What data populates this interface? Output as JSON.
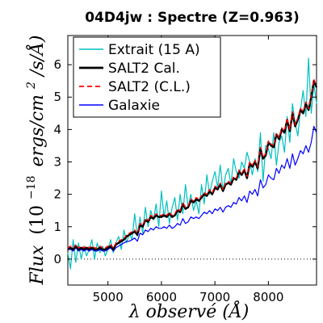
{
  "chart_data": {
    "type": "line",
    "title": "04D4jw : Spectre (Z=0.963)",
    "xlabel": "λ observé (Å)",
    "ylabel_parts": {
      "main": "Flux",
      "paren_open": "(10",
      "exponent": "−18",
      "units": "ergs/cm",
      "units_exp": "2",
      "units_tail": "/s/Å)"
    },
    "xlim": [
      4250,
      8900
    ],
    "ylim": [
      -0.8,
      6.9
    ],
    "xticks": [
      5000,
      6000,
      7000,
      8000
    ],
    "xtick_labels": [
      "5000",
      "6000",
      "7000",
      "8000"
    ],
    "yticks": [
      0,
      1,
      2,
      3,
      4,
      5,
      6
    ],
    "ytick_labels": [
      "0",
      "1",
      "2",
      "3",
      "4",
      "5",
      "6"
    ],
    "legend_position": "top-left",
    "zero_line": true,
    "series": [
      {
        "name": "Extrait (15 A)",
        "color": "#00bfbf",
        "x": [
          4250,
          4300,
          4350,
          4400,
          4450,
          4500,
          4550,
          4600,
          4650,
          4700,
          4750,
          4800,
          4850,
          4900,
          4950,
          5000,
          5050,
          5100,
          5150,
          5200,
          5250,
          5300,
          5350,
          5400,
          5450,
          5500,
          5550,
          5600,
          5650,
          5700,
          5750,
          5800,
          5850,
          5900,
          5950,
          6000,
          6050,
          6100,
          6150,
          6200,
          6250,
          6300,
          6350,
          6400,
          6450,
          6500,
          6550,
          6600,
          6650,
          6700,
          6750,
          6800,
          6850,
          6900,
          6950,
          7000,
          7050,
          7100,
          7150,
          7200,
          7250,
          7300,
          7350,
          7400,
          7450,
          7500,
          7550,
          7600,
          7650,
          7700,
          7750,
          7800,
          7850,
          7900,
          7950,
          8000,
          8050,
          8100,
          8150,
          8200,
          8250,
          8300,
          8350,
          8400,
          8450,
          8500,
          8550,
          8600,
          8650,
          8700,
          8750,
          8800,
          8850,
          8900
        ],
        "values": [
          0.2,
          -0.3,
          0.6,
          -0.1,
          0.5,
          0.0,
          0.4,
          0.1,
          0.3,
          0.6,
          0.0,
          0.5,
          0.2,
          0.4,
          0.1,
          0.3,
          0.6,
          0.2,
          0.5,
          0.7,
          0.3,
          0.9,
          0.5,
          0.8,
          0.6,
          1.4,
          0.7,
          1.3,
          0.8,
          1.6,
          1.0,
          1.5,
          1.2,
          1.7,
          1.0,
          2.1,
          1.3,
          1.8,
          1.1,
          1.6,
          1.9,
          1.2,
          2.0,
          1.4,
          2.3,
          1.6,
          2.0,
          1.5,
          1.8,
          1.4,
          2.3,
          1.7,
          2.6,
          2.0,
          2.4,
          2.7,
          2.2,
          2.9,
          2.1,
          2.6,
          2.8,
          2.3,
          3.1,
          2.7,
          2.5,
          3.0,
          2.8,
          3.3,
          3.0,
          2.6,
          3.1,
          2.7,
          3.9,
          2.4,
          3.5,
          3.4,
          3.1,
          3.9,
          2.9,
          3.6,
          3.8,
          3.3,
          4.4,
          3.6,
          4.8,
          4.2,
          3.8,
          4.6,
          5.2,
          4.4,
          6.2,
          4.5,
          5.4,
          4.8
        ]
      },
      {
        "name": "SALT2 Cal.",
        "color": "#000000",
        "x": [
          4250,
          4300,
          4350,
          4400,
          4450,
          4500,
          4550,
          4600,
          4650,
          4700,
          4750,
          4800,
          4850,
          4900,
          4950,
          5000,
          5050,
          5100,
          5150,
          5200,
          5250,
          5300,
          5350,
          5400,
          5450,
          5500,
          5550,
          5600,
          5650,
          5700,
          5750,
          5800,
          5850,
          5900,
          5950,
          6000,
          6050,
          6100,
          6150,
          6200,
          6250,
          6300,
          6350,
          6400,
          6450,
          6500,
          6550,
          6600,
          6650,
          6700,
          6750,
          6800,
          6850,
          6900,
          6950,
          7000,
          7050,
          7100,
          7150,
          7200,
          7250,
          7300,
          7350,
          7400,
          7450,
          7500,
          7550,
          7600,
          7650,
          7700,
          7750,
          7800,
          7850,
          7900,
          7950,
          8000,
          8050,
          8100,
          8150,
          8200,
          8250,
          8300,
          8350,
          8400,
          8450,
          8500,
          8550,
          8600,
          8650,
          8700,
          8750,
          8800,
          8850,
          8900
        ],
        "values": [
          0.3,
          0.35,
          0.3,
          0.4,
          0.3,
          0.35,
          0.3,
          0.35,
          0.3,
          0.35,
          0.3,
          0.3,
          0.35,
          0.3,
          0.3,
          0.35,
          0.4,
          0.3,
          0.45,
          0.5,
          0.55,
          0.6,
          0.7,
          0.75,
          0.8,
          0.85,
          0.75,
          1.05,
          1.0,
          1.2,
          1.15,
          1.3,
          1.25,
          1.35,
          1.3,
          1.3,
          1.35,
          1.3,
          1.4,
          1.3,
          1.35,
          1.5,
          1.45,
          1.7,
          1.55,
          1.6,
          1.8,
          1.75,
          1.85,
          1.8,
          1.9,
          2.0,
          1.95,
          2.1,
          2.0,
          2.2,
          2.15,
          2.3,
          2.1,
          2.3,
          2.35,
          2.3,
          2.5,
          2.45,
          2.7,
          2.6,
          2.75,
          2.5,
          2.95,
          2.85,
          3.0,
          2.8,
          3.4,
          3.1,
          3.2,
          3.6,
          3.5,
          3.45,
          3.85,
          3.7,
          4.0,
          3.9,
          4.3,
          3.95,
          4.5,
          4.1,
          4.3,
          4.6,
          4.5,
          4.8,
          4.6,
          5.0,
          5.5,
          5.3
        ]
      },
      {
        "name": "SALT2 (C.L.)",
        "color": "#ff0000",
        "x": [
          4250,
          4300,
          4350,
          4400,
          4450,
          4500,
          4550,
          4600,
          4650,
          4700,
          4750,
          4800,
          4850,
          4900,
          4950,
          5000,
          5050,
          5100,
          5150,
          5200,
          5250,
          5300,
          5350,
          5400,
          5450,
          5500,
          5550,
          5600,
          5650,
          5700,
          5750,
          5800,
          5850,
          5900,
          5950,
          6000,
          6050,
          6100,
          6150,
          6200,
          6250,
          6300,
          6350,
          6400,
          6450,
          6500,
          6550,
          6600,
          6650,
          6700,
          6750,
          6800,
          6850,
          6900,
          6950,
          7000,
          7050,
          7100,
          7150,
          7200,
          7250,
          7300,
          7350,
          7400,
          7450,
          7500,
          7550,
          7600,
          7650,
          7700,
          7750,
          7800,
          7850,
          7900,
          7950,
          8000,
          8050,
          8100,
          8150,
          8200,
          8250,
          8300,
          8350,
          8400,
          8450,
          8500,
          8550,
          8600,
          8650,
          8700,
          8750,
          8800,
          8850,
          8900
        ],
        "values": [
          0.35,
          0.4,
          0.35,
          0.45,
          0.35,
          0.4,
          0.35,
          0.4,
          0.35,
          0.4,
          0.35,
          0.35,
          0.4,
          0.35,
          0.35,
          0.4,
          0.45,
          0.35,
          0.5,
          0.55,
          0.6,
          0.65,
          0.75,
          0.8,
          0.85,
          0.9,
          0.8,
          1.1,
          1.05,
          1.25,
          1.2,
          1.35,
          1.3,
          1.4,
          1.35,
          1.35,
          1.4,
          1.35,
          1.45,
          1.35,
          1.4,
          1.55,
          1.5,
          1.75,
          1.6,
          1.65,
          1.85,
          1.8,
          1.9,
          1.85,
          1.95,
          2.05,
          2.0,
          2.15,
          2.05,
          2.25,
          2.2,
          2.35,
          2.15,
          2.35,
          2.4,
          2.35,
          2.55,
          2.5,
          2.75,
          2.65,
          2.8,
          2.55,
          3.0,
          2.9,
          3.05,
          2.85,
          3.45,
          3.15,
          3.25,
          3.65,
          3.55,
          3.5,
          3.9,
          3.75,
          4.05,
          3.95,
          4.35,
          4.0,
          4.55,
          4.15,
          4.35,
          4.65,
          4.55,
          4.85,
          4.65,
          5.05,
          5.55,
          5.35
        ]
      },
      {
        "name": "Galaxie",
        "color": "#0000ff",
        "x": [
          4250,
          4300,
          4350,
          4400,
          4450,
          4500,
          4550,
          4600,
          4650,
          4700,
          4750,
          4800,
          4850,
          4900,
          4950,
          5000,
          5050,
          5100,
          5150,
          5200,
          5250,
          5300,
          5350,
          5400,
          5450,
          5500,
          5550,
          5600,
          5650,
          5700,
          5750,
          5800,
          5850,
          5900,
          5950,
          6000,
          6050,
          6100,
          6150,
          6200,
          6250,
          6300,
          6350,
          6400,
          6450,
          6500,
          6550,
          6600,
          6650,
          6700,
          6750,
          6800,
          6850,
          6900,
          6950,
          7000,
          7050,
          7100,
          7150,
          7200,
          7250,
          7300,
          7350,
          7400,
          7450,
          7500,
          7550,
          7600,
          7650,
          7700,
          7750,
          7800,
          7850,
          7900,
          7950,
          8000,
          8050,
          8100,
          8150,
          8200,
          8250,
          8300,
          8350,
          8400,
          8450,
          8500,
          8550,
          8600,
          8650,
          8700,
          8750,
          8800,
          8850,
          8900
        ],
        "values": [
          0.3,
          0.3,
          0.25,
          0.35,
          0.25,
          0.3,
          0.25,
          0.3,
          0.25,
          0.3,
          0.25,
          0.25,
          0.3,
          0.25,
          0.25,
          0.3,
          0.35,
          0.25,
          0.35,
          0.4,
          0.45,
          0.5,
          0.55,
          0.55,
          0.6,
          0.65,
          0.55,
          0.8,
          0.75,
          0.9,
          0.85,
          0.95,
          0.9,
          1.0,
          0.95,
          0.95,
          1.0,
          0.95,
          1.05,
          0.95,
          1.0,
          1.1,
          1.05,
          1.25,
          1.1,
          1.15,
          1.3,
          1.25,
          1.3,
          1.25,
          1.35,
          1.45,
          1.4,
          1.5,
          1.4,
          1.55,
          1.5,
          1.6,
          1.45,
          1.6,
          1.65,
          1.6,
          1.75,
          1.7,
          1.9,
          1.8,
          1.95,
          1.75,
          2.1,
          2.0,
          2.15,
          1.95,
          2.45,
          2.2,
          2.3,
          2.6,
          2.5,
          2.45,
          2.8,
          2.65,
          2.9,
          2.8,
          3.1,
          2.8,
          3.25,
          2.9,
          3.1,
          3.35,
          3.25,
          3.5,
          3.3,
          3.6,
          4.1,
          3.9
        ]
      }
    ]
  }
}
